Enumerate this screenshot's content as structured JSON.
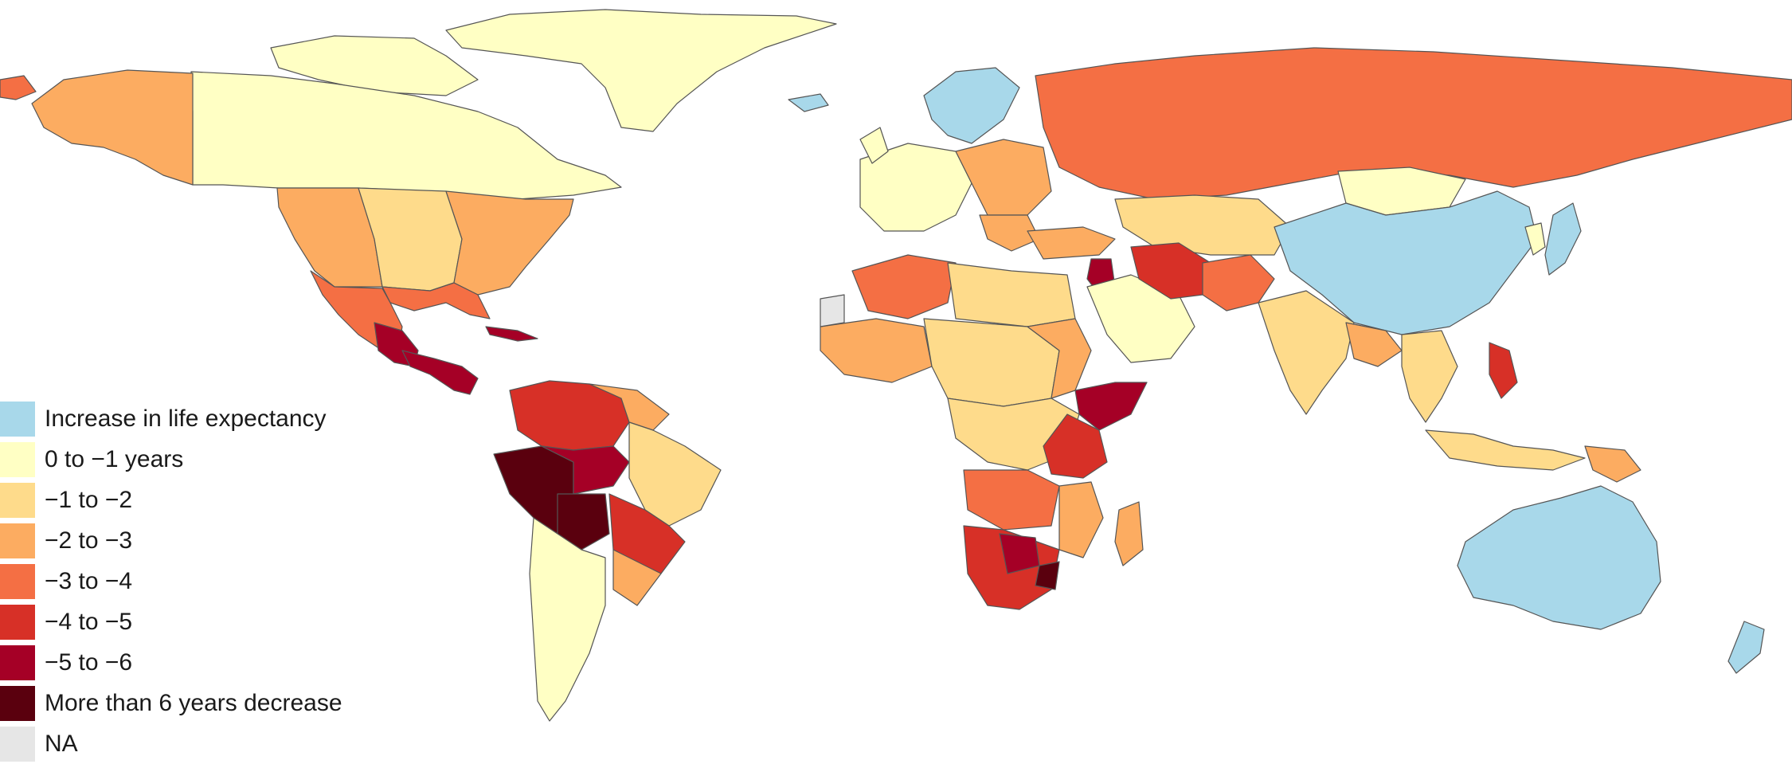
{
  "colors": {
    "increase": "#a8d8ea",
    "c0to1": "#ffffc4",
    "c1to2": "#fedb8b",
    "c2to3": "#fcac61",
    "c3to4": "#f46f44",
    "c4to5": "#d73027",
    "c5to6": "#a50026",
    "c6plus": "#5a000e",
    "na": "#e6e6e6"
  },
  "legend": {
    "items": [
      {
        "label": "Increase in life expectancy",
        "color": "#a8d8ea"
      },
      {
        "label": "0 to −1 years",
        "color": "#ffffc4"
      },
      {
        "label": "−1 to −2",
        "color": "#fedb8b"
      },
      {
        "label": "−2 to −3",
        "color": "#fcac61"
      },
      {
        "label": "−3 to −4",
        "color": "#f46f44"
      },
      {
        "label": "−4 to −5",
        "color": "#d73027"
      },
      {
        "label": "−5 to −6",
        "color": "#a50026"
      },
      {
        "label": "More than 6 years decrease",
        "color": "#5a000e"
      },
      {
        "label": "NA",
        "color": "#e6e6e6"
      }
    ]
  }
}
